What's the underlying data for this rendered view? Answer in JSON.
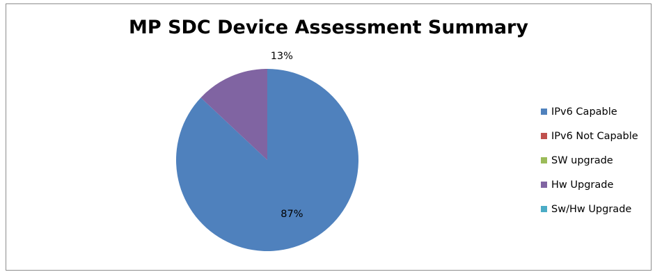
{
  "chart_data": {
    "type": "pie",
    "title": "MP SDC Device Assessment Summary",
    "categories": [
      "IPv6 Capable",
      "IPv6 Not Capable",
      "SW upgrade",
      "Hw Upgrade",
      "Sw/Hw Upgrade"
    ],
    "values": [
      87,
      0,
      0,
      13,
      0
    ],
    "data_labels": [
      "87%",
      "",
      "",
      "13%",
      ""
    ],
    "colors": [
      "#4f81bd",
      "#c0504d",
      "#9bbb59",
      "#8064a2",
      "#4bacc6"
    ],
    "legend_position": "right",
    "start_angle": "12 o'clock, clockwise"
  }
}
